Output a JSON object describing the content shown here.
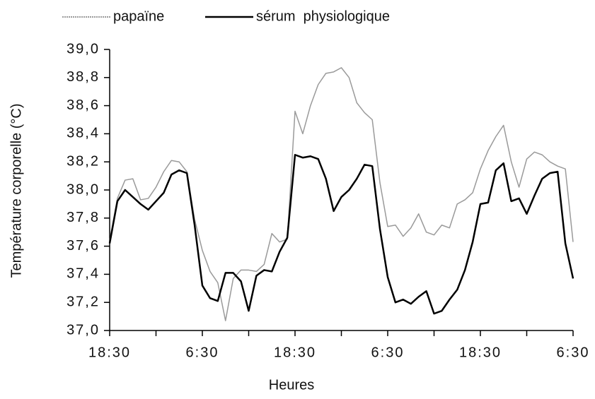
{
  "chart_data": {
    "type": "line",
    "xlabel": "Heures",
    "ylabel": "Température corporelle (°C)",
    "x": [
      0,
      1,
      2,
      3,
      4,
      5,
      6,
      7,
      8,
      9,
      10,
      11,
      12,
      13,
      14,
      15,
      16,
      17,
      18,
      19,
      20,
      21,
      22,
      23,
      24,
      25,
      26,
      27,
      28,
      29,
      30,
      31,
      32,
      33,
      34,
      35,
      36,
      37,
      38,
      39,
      40,
      41,
      42,
      43,
      44,
      45,
      46,
      47,
      48,
      49,
      50,
      51,
      52,
      53,
      54,
      55,
      56,
      57,
      58,
      59,
      60
    ],
    "series": [
      {
        "name": "papaïne",
        "color": "#9a9a9a",
        "values": [
          37.64,
          37.94,
          38.07,
          38.08,
          37.93,
          37.94,
          38.02,
          38.13,
          38.21,
          38.2,
          38.13,
          37.79,
          37.57,
          37.42,
          37.34,
          37.07,
          37.37,
          37.43,
          37.43,
          37.42,
          37.47,
          37.69,
          37.63,
          37.65,
          38.56,
          38.4,
          38.6,
          38.75,
          38.83,
          38.84,
          38.87,
          38.8,
          38.62,
          38.55,
          38.5,
          38.05,
          37.74,
          37.75,
          37.67,
          37.73,
          37.83,
          37.7,
          37.68,
          37.75,
          37.73,
          37.9,
          37.93,
          37.98,
          38.15,
          38.28,
          38.38,
          38.46,
          38.2,
          38.02,
          38.22,
          38.27,
          38.25,
          38.2,
          38.17,
          38.15,
          37.63
        ]
      },
      {
        "name": "sérum  physiologique",
        "color": "#000000",
        "values": [
          37.62,
          37.92,
          38.0,
          37.95,
          37.9,
          37.86,
          37.92,
          37.98,
          38.11,
          38.14,
          38.12,
          37.75,
          37.32,
          37.23,
          37.21,
          37.41,
          37.41,
          37.35,
          37.14,
          37.39,
          37.43,
          37.42,
          37.56,
          37.66,
          38.25,
          38.23,
          38.24,
          38.22,
          38.08,
          37.85,
          37.95,
          38.0,
          38.08,
          38.18,
          38.17,
          37.72,
          37.38,
          37.2,
          37.22,
          37.19,
          37.24,
          37.28,
          37.12,
          37.14,
          37.22,
          37.29,
          37.43,
          37.63,
          37.9,
          37.91,
          38.14,
          38.19,
          37.92,
          37.94,
          37.83,
          37.96,
          38.08,
          38.12,
          38.13,
          37.62,
          37.37
        ]
      }
    ],
    "xlim": [
      0,
      60
    ],
    "xticks": [
      {
        "value": 0,
        "label": "18:30"
      },
      {
        "value": 12,
        "label": "6:30"
      },
      {
        "value": 24,
        "label": "18:30"
      },
      {
        "value": 36,
        "label": "6:30"
      },
      {
        "value": 48,
        "label": "18:30"
      },
      {
        "value": 60,
        "label": "6:30"
      }
    ],
    "xminor_ticks": [
      6,
      18,
      30,
      42,
      54
    ],
    "ylim": [
      37.0,
      39.0
    ],
    "yticks": [
      {
        "value": 37.0,
        "label": "37,0"
      },
      {
        "value": 37.2,
        "label": "37,2"
      },
      {
        "value": 37.4,
        "label": "37,4"
      },
      {
        "value": 37.6,
        "label": "37,6"
      },
      {
        "value": 37.8,
        "label": "37,8"
      },
      {
        "value": 38.0,
        "label": "38,0"
      },
      {
        "value": 38.2,
        "label": "38,2"
      },
      {
        "value": 38.4,
        "label": "38,4"
      },
      {
        "value": 38.6,
        "label": "38,6"
      },
      {
        "value": 38.8,
        "label": "38,8"
      },
      {
        "value": 39.0,
        "label": "39,0"
      }
    ]
  }
}
